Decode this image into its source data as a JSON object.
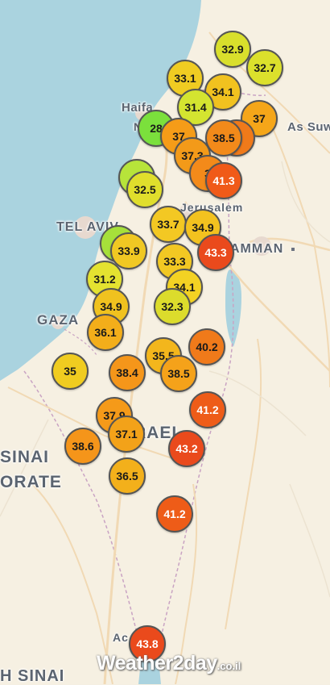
{
  "places": [
    {
      "label": "Haifa"
    },
    {
      "label": "As Suw"
    },
    {
      "label": "TEL AVIV"
    },
    {
      "label": "AMMAN"
    },
    {
      "label": "GAZA"
    },
    {
      "label": "SINAI"
    },
    {
      "label": "ORATE"
    },
    {
      "label": "RAEL"
    },
    {
      "label": "H SINAI"
    },
    {
      "label": "N"
    },
    {
      "label": "Jerusalem"
    },
    {
      "label": "Ac"
    }
  ],
  "markers": [
    {
      "value": "32.9",
      "color": "#d9df2c"
    },
    {
      "value": "32.7",
      "color": "#dce02c"
    },
    {
      "value": "33.1",
      "color": "#f0cc22"
    },
    {
      "value": "34.1",
      "color": "#f1c21f"
    },
    {
      "value": "31.4",
      "color": "#d4e430"
    },
    {
      "value": "37",
      "color": "#f5a619"
    },
    {
      "value": "28",
      "color": "#7be03c"
    },
    {
      "value": "37",
      "color": "#f59c18"
    },
    {
      "value": "3",
      "color": "#f07a1a"
    },
    {
      "value": "38.5",
      "color": "#f28a1a"
    },
    {
      "value": "37.3",
      "color": "#f39a19"
    },
    {
      "value": "2",
      "color": "#b7e43a"
    },
    {
      "value": "3",
      "color": "#f38a1a"
    },
    {
      "value": "41.3",
      "color": "#f05a18"
    },
    {
      "value": "32.5",
      "color": "#e0de2c"
    },
    {
      "value": "33.7",
      "color": "#f3c823"
    },
    {
      "value": "34.9",
      "color": "#f3c21f"
    },
    {
      "value": "3",
      "color": "#a6e03a"
    },
    {
      "value": "43.3",
      "color": "#ea4a1c"
    },
    {
      "value": "33.9",
      "color": "#f0c823"
    },
    {
      "value": "33.3",
      "color": "#f2c823"
    },
    {
      "value": "31.2",
      "color": "#e4e230"
    },
    {
      "value": "34.1",
      "color": "#f3d223"
    },
    {
      "value": "32.3",
      "color": "#dcdc2c"
    },
    {
      "value": "34.9",
      "color": "#f0c21f"
    },
    {
      "value": "36.1",
      "color": "#f3ae1a"
    },
    {
      "value": "40.2",
      "color": "#f07a1a"
    },
    {
      "value": "35",
      "color": "#f0cc20"
    },
    {
      "value": "38.4",
      "color": "#f5961a"
    },
    {
      "value": "35.5",
      "color": "#f3b61c"
    },
    {
      "value": "38.5",
      "color": "#f5a21a"
    },
    {
      "value": "41.2",
      "color": "#ee5c18"
    },
    {
      "value": "37.9",
      "color": "#f59a19"
    },
    {
      "value": "37.1",
      "color": "#f3a219"
    },
    {
      "value": "38.6",
      "color": "#f5951a"
    },
    {
      "value": "43.2",
      "color": "#ea4a1c"
    },
    {
      "value": "36.5",
      "color": "#f3b01b"
    },
    {
      "value": "41.2",
      "color": "#ee5c18"
    },
    {
      "value": "43.8",
      "color": "#ea4a1c"
    }
  ],
  "watermark": {
    "brand": "Weather2day",
    "suffix": ".co.il"
  }
}
